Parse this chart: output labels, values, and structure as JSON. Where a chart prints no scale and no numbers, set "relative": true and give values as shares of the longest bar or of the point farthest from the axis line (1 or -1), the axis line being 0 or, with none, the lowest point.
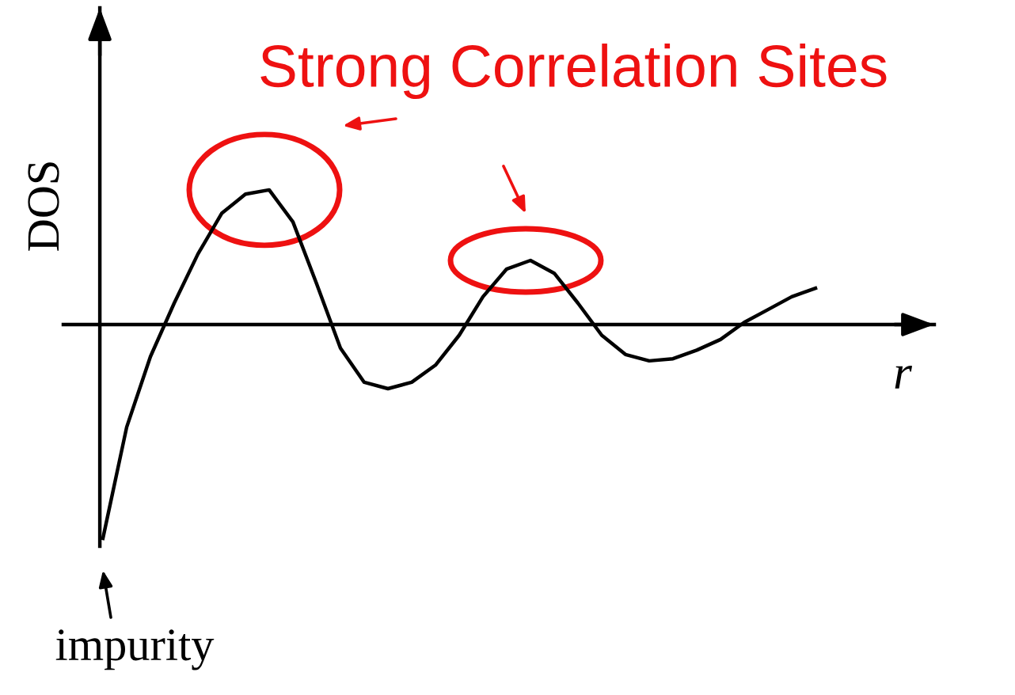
{
  "chart_data": {
    "type": "line",
    "relative": true,
    "xlabel": "r",
    "ylabel": "DOS",
    "categories": [
      null,
      null,
      null,
      null,
      null,
      null,
      null,
      null,
      null,
      null,
      null,
      null,
      null,
      null,
      null,
      null,
      null,
      null,
      null,
      null,
      null,
      null,
      null,
      null,
      null,
      null,
      null,
      null,
      null,
      null,
      null
    ],
    "series": [
      {
        "color": "#000000",
        "values": [
          -1,
          -0.48,
          -0.15,
          0.1,
          0.33,
          0.52,
          0.61,
          0.63,
          0.48,
          0.19,
          -0.11,
          -0.27,
          -0.3,
          -0.27,
          -0.19,
          -0.05,
          0.13,
          0.26,
          0.3,
          0.24,
          0.1,
          -0.05,
          -0.14,
          -0.17,
          -0.16,
          -0.12,
          -0.07,
          0.01,
          0.07,
          0.13,
          0.17
        ]
      }
    ],
    "annotations": [
      "Strong Correlation Sites",
      "impurity"
    ]
  }
}
